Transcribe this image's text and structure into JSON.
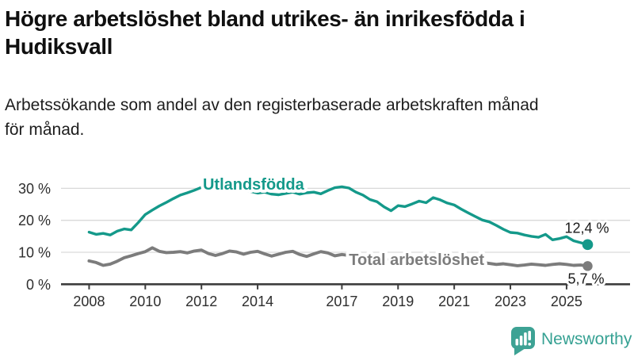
{
  "header": {
    "title_lines": [
      "Högre arbetslöshet bland utrikes- än inrikesfödda i",
      "Hudiksvall"
    ],
    "subtitle_lines": [
      "Arbetssökande som andel av den registerbaserade arbetskraften månad",
      "för månad."
    ]
  },
  "chart_data": {
    "type": "line",
    "title": "Högre arbetslöshet bland utrikes- än inrikesfödda i Hudiksvall",
    "subtitle": "Arbetssökande som andel av den registerbaserade arbetskraften månad för månad.",
    "xlabel": "",
    "ylabel": "",
    "grid": "horizontal",
    "legend": "inline-labels",
    "xlim": [
      2007.0,
      2027.3
    ],
    "ylim": [
      0,
      33
    ],
    "x_ticks": [
      2008,
      2010,
      2012,
      2014,
      2017,
      2019,
      2021,
      2023,
      2025
    ],
    "x_tick_labels": [
      "2008",
      "2010",
      "2012",
      "2014",
      "2017",
      "2019",
      "2021",
      "2023",
      "2025"
    ],
    "y_ticks": [
      0,
      10,
      20,
      30
    ],
    "y_tick_labels": [
      "0 %",
      "10 %",
      "20 %",
      "30 %"
    ],
    "x": [
      2008.0,
      2008.25,
      2008.5,
      2008.75,
      2009.0,
      2009.25,
      2009.5,
      2009.75,
      2010.0,
      2010.25,
      2010.5,
      2010.75,
      2011.0,
      2011.25,
      2011.5,
      2011.75,
      2012.0,
      2012.25,
      2012.5,
      2012.75,
      2013.0,
      2013.25,
      2013.5,
      2013.75,
      2014.0,
      2014.25,
      2014.5,
      2014.75,
      2015.0,
      2015.25,
      2015.5,
      2015.75,
      2016.0,
      2016.25,
      2016.5,
      2016.75,
      2017.0,
      2017.25,
      2017.5,
      2017.75,
      2018.0,
      2018.25,
      2018.5,
      2018.75,
      2019.0,
      2019.25,
      2019.5,
      2019.75,
      2020.0,
      2020.25,
      2020.5,
      2020.75,
      2021.0,
      2021.25,
      2021.5,
      2021.75,
      2022.0,
      2022.25,
      2022.5,
      2022.75,
      2023.0,
      2023.25,
      2023.5,
      2023.75,
      2024.0,
      2024.25,
      2024.5,
      2024.75,
      2025.0,
      2025.25,
      2025.5,
      2025.75
    ],
    "series": [
      {
        "name": "Utlandsfödda",
        "color": "#14998a",
        "end_value": 12.4,
        "end_label": "12,4 %",
        "label_anchor": {
          "x": 2012.05,
          "y": 31.4
        },
        "values": [
          16.3,
          15.6,
          15.9,
          15.4,
          16.6,
          17.3,
          17.0,
          19.3,
          21.8,
          23.2,
          24.5,
          25.6,
          26.8,
          27.9,
          28.6,
          29.4,
          30.3,
          31.2,
          31.6,
          31.0,
          30.4,
          29.9,
          29.4,
          29.0,
          28.5,
          28.8,
          28.2,
          28.0,
          28.4,
          28.8,
          28.2,
          28.6,
          28.8,
          28.3,
          29.3,
          30.2,
          30.5,
          30.1,
          28.8,
          27.9,
          26.5,
          25.8,
          24.2,
          23.0,
          24.6,
          24.3,
          25.1,
          26.0,
          25.5,
          27.1,
          26.4,
          25.4,
          24.8,
          23.5,
          22.3,
          21.2,
          20.1,
          19.5,
          18.4,
          17.2,
          16.2,
          16.0,
          15.4,
          15.0,
          14.7,
          15.6,
          13.9,
          14.3,
          14.9,
          13.6,
          13.0,
          12.4
        ]
      },
      {
        "name": "Total arbetslöshet",
        "color": "#7c7c7c",
        "end_value": 5.7,
        "end_label": "5,7 %",
        "label_anchor": {
          "x": 2017.25,
          "y": 7.8
        },
        "values": [
          7.3,
          6.8,
          5.9,
          6.3,
          7.2,
          8.3,
          8.9,
          9.6,
          10.2,
          11.4,
          10.3,
          9.9,
          10.0,
          10.2,
          9.8,
          10.4,
          10.7,
          9.6,
          9.0,
          9.6,
          10.4,
          10.1,
          9.4,
          10.0,
          10.3,
          9.5,
          8.8,
          9.4,
          10.0,
          10.3,
          9.3,
          8.7,
          9.5,
          10.2,
          9.8,
          8.9,
          9.3,
          9.0,
          8.6,
          8.3,
          8.5,
          8.0,
          7.6,
          7.8,
          8.0,
          7.7,
          7.9,
          8.1,
          8.3,
          9.2,
          9.0,
          8.6,
          8.4,
          7.9,
          7.4,
          7.0,
          6.8,
          6.5,
          6.2,
          6.4,
          6.1,
          5.8,
          6.0,
          6.3,
          6.1,
          5.9,
          6.2,
          6.4,
          6.2,
          5.9,
          6.0,
          5.7
        ]
      }
    ]
  },
  "style_colors": {
    "gridline": "#d9d9d9",
    "axis": "#3d3d3d",
    "tick_label": "#2e2e2e",
    "value_label": "#1a1a1a"
  },
  "logo": {
    "wordmark": "Newsworthy",
    "color": "#36a193",
    "icon": "bar-chart-speech-bubble-icon"
  }
}
